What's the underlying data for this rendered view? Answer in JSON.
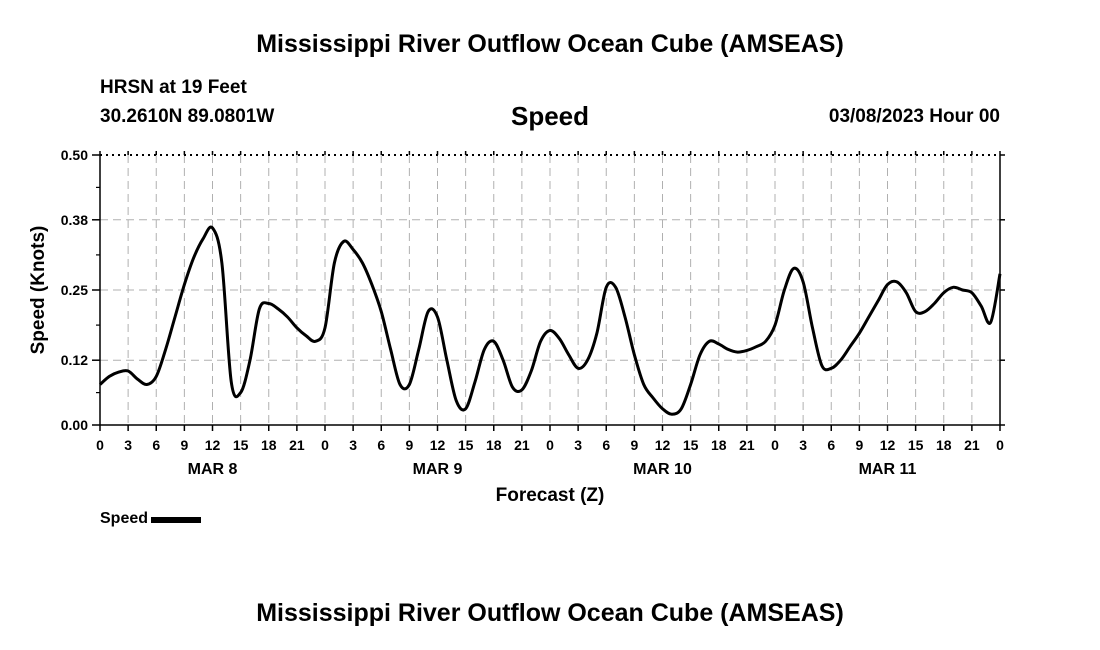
{
  "header": {
    "title": "Mississippi River Outflow Ocean Cube (AMSEAS)",
    "station": "HRSN at 19 Feet",
    "coords": "30.2610N  89.0801W",
    "datetime": "03/08/2023 Hour 00",
    "footer_title": "Mississippi River Outflow Ocean Cube (AMSEAS)"
  },
  "legend": {
    "label": "Speed"
  },
  "chart_data": {
    "type": "line",
    "title": "Speed",
    "xlabel": "Forecast (Z)",
    "ylabel": "Speed (Knots)",
    "ylim": [
      0,
      0.5
    ],
    "yticks": [
      "0.00",
      "0.12",
      "0.25",
      "0.38",
      "0.50"
    ],
    "xlim": [
      0,
      96
    ],
    "x_unit": "hours from 03/08/2023 00Z",
    "xtick_labels": [
      "0",
      "3",
      "6",
      "9",
      "12",
      "15",
      "18",
      "21",
      "0",
      "3",
      "6",
      "9",
      "12",
      "15",
      "18",
      "21",
      "0",
      "3",
      "6",
      "9",
      "12",
      "15",
      "18",
      "21",
      "0",
      "3",
      "6",
      "9",
      "12",
      "15",
      "18",
      "21",
      "0"
    ],
    "day_labels": [
      "MAR 8",
      "MAR 9",
      "MAR 10",
      "MAR 11"
    ],
    "grid": true,
    "legend_position": "bottom-left",
    "series": [
      {
        "name": "Speed",
        "color": "#000000",
        "x": [
          0,
          1,
          2,
          3,
          4,
          5,
          6,
          7,
          8,
          9,
          10,
          11,
          12,
          13,
          14,
          15,
          16,
          17,
          18,
          19,
          20,
          21,
          22,
          23,
          24,
          25,
          26,
          27,
          28,
          29,
          30,
          31,
          32,
          33,
          34,
          35,
          36,
          37,
          38,
          39,
          40,
          41,
          42,
          43,
          44,
          45,
          46,
          47,
          48,
          49,
          50,
          51,
          52,
          53,
          54,
          55,
          56,
          57,
          58,
          59,
          60,
          61,
          62,
          63,
          64,
          65,
          66,
          67,
          68,
          69,
          70,
          71,
          72,
          73,
          74,
          75,
          76,
          77,
          78,
          79,
          80,
          81,
          82,
          83,
          84,
          85,
          86,
          87,
          88,
          89,
          90,
          91,
          92,
          93,
          94,
          95,
          96
        ],
        "y": [
          0.075,
          0.09,
          0.098,
          0.1,
          0.085,
          0.075,
          0.09,
          0.14,
          0.2,
          0.26,
          0.31,
          0.345,
          0.365,
          0.3,
          0.08,
          0.06,
          0.12,
          0.215,
          0.225,
          0.215,
          0.2,
          0.18,
          0.165,
          0.155,
          0.18,
          0.3,
          0.34,
          0.325,
          0.3,
          0.26,
          0.21,
          0.14,
          0.075,
          0.075,
          0.14,
          0.21,
          0.2,
          0.12,
          0.045,
          0.03,
          0.08,
          0.14,
          0.155,
          0.12,
          0.07,
          0.065,
          0.1,
          0.155,
          0.175,
          0.16,
          0.13,
          0.105,
          0.12,
          0.17,
          0.255,
          0.255,
          0.2,
          0.13,
          0.075,
          0.05,
          0.03,
          0.02,
          0.03,
          0.075,
          0.13,
          0.155,
          0.15,
          0.14,
          0.135,
          0.138,
          0.145,
          0.155,
          0.185,
          0.25,
          0.29,
          0.265,
          0.18,
          0.11,
          0.105,
          0.12,
          0.145,
          0.17,
          0.2,
          0.23,
          0.26,
          0.265,
          0.245,
          0.21,
          0.21,
          0.225,
          0.245,
          0.255,
          0.25,
          0.245,
          0.22,
          0.19,
          0.28
        ]
      }
    ]
  }
}
